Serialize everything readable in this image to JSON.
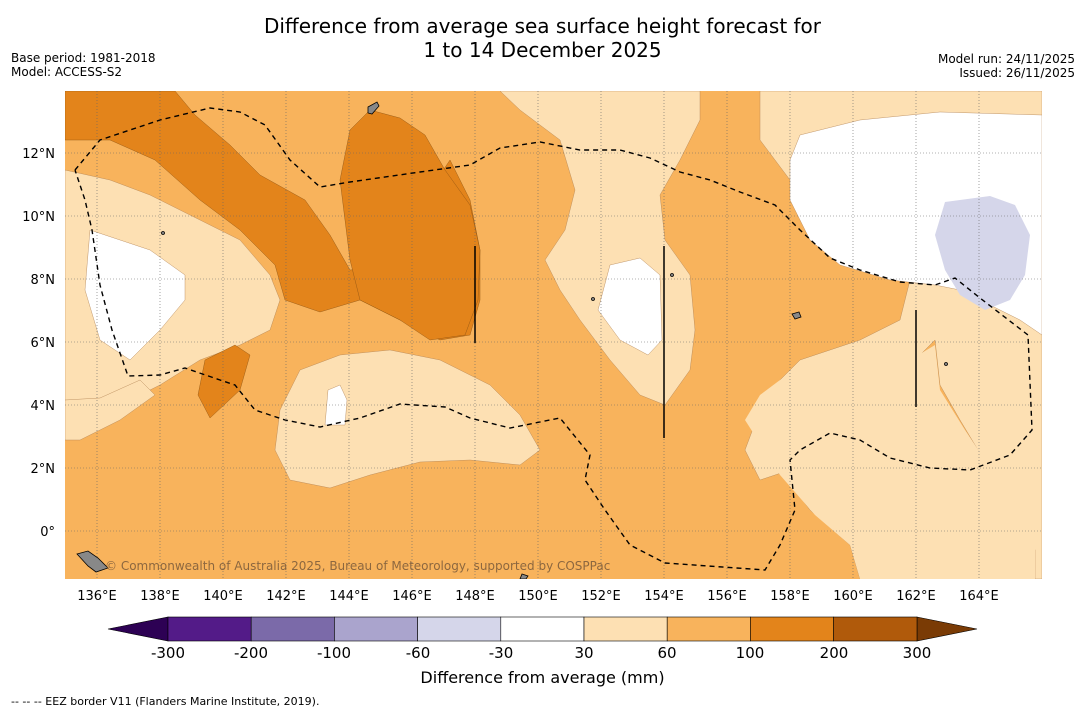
{
  "title": {
    "line1": "Difference from average sea surface height forecast for",
    "line2": "1 to 14 December 2025"
  },
  "meta_left": {
    "base_period": "Base period: 1981-2018",
    "model": "Model: ACCESS-S2"
  },
  "meta_right": {
    "model_run": "Model run: 24/11/2025",
    "issued": "Issued: 26/11/2025"
  },
  "map": {
    "lon_ticks": [
      "136°E",
      "138°E",
      "140°E",
      "142°E",
      "144°E",
      "146°E",
      "148°E",
      "150°E",
      "152°E",
      "154°E",
      "156°E",
      "158°E",
      "160°E",
      "162°E",
      "164°E"
    ],
    "lat_ticks": [
      "12°N",
      "10°N",
      "8°N",
      "6°N",
      "4°N",
      "2°N",
      "0°"
    ],
    "watermark": "© Commonwealth of Australia 2025, Bureau of Meteorology, supported by COSPPac",
    "colors": {
      "c30_60": "#fde0b3",
      "c60_100": "#f8b35c",
      "c100_200": "#e3841b",
      "neg60_30": "#d5d6ea",
      "neutral": "#ffffff",
      "eez_line": "#000000"
    }
  },
  "colorbar": {
    "title": "Difference from average (mm)",
    "ticks": [
      "-300",
      "-200",
      "-100",
      "-60",
      "-30",
      "30",
      "60",
      "100",
      "200",
      "300"
    ],
    "bins": [
      "#531b88",
      "#7b6aa9",
      "#aaa4cd",
      "#d5d6ea",
      "#ffffff",
      "#fde0b3",
      "#f8b35c",
      "#e3841b",
      "#b05a0b"
    ],
    "under_color": "#2d0154",
    "over_color": "#7a3b05"
  },
  "footer": {
    "legend": "--  --  -- EEZ border V11 (Flanders Marine Institute, 2019)."
  }
}
